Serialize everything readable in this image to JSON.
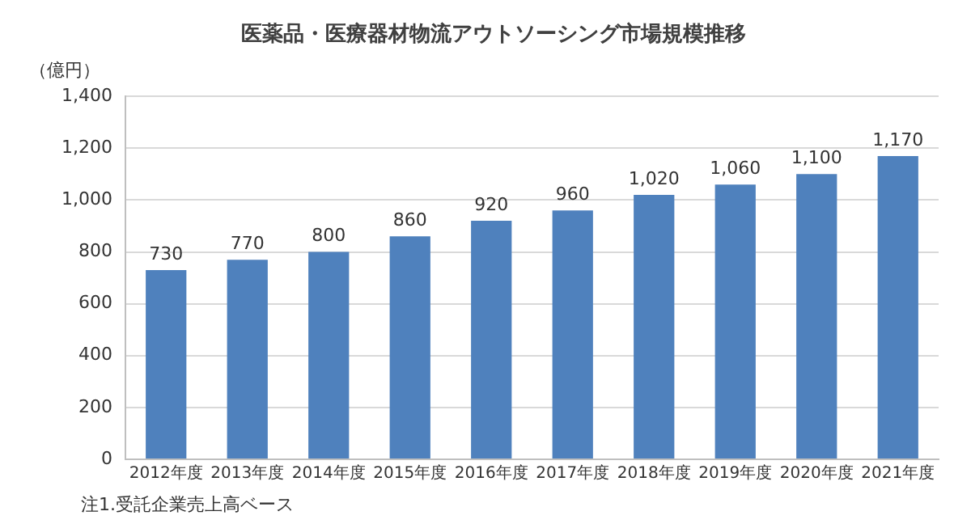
{
  "chart_data": {
    "type": "bar",
    "title": "医薬品・医療器材物流アウトソーシング市場規模推移",
    "ylabel": "（億円）",
    "categories": [
      "2012年度",
      "2013年度",
      "2014年度",
      "2015年度",
      "2016年度",
      "2017年度",
      "2018年度",
      "2019年度",
      "2020年度",
      "2021年度"
    ],
    "values": [
      730,
      770,
      800,
      860,
      920,
      960,
      1020,
      1060,
      1100,
      1170
    ],
    "value_labels": [
      "730",
      "770",
      "800",
      "860",
      "920",
      "960",
      "1,020",
      "1,060",
      "1,100",
      "1,170"
    ],
    "color": "#4f81bd",
    "ylim": [
      0,
      1400
    ],
    "yticks": [
      0,
      200,
      400,
      600,
      800,
      {
        "value": 1000,
        "label": "1,000"
      },
      {
        "value": 1200,
        "label": "1,200"
      },
      {
        "value": 1400,
        "label": "1,400"
      }
    ],
    "grid": "y",
    "annotations": [
      "注1.受託企業売上高ベース"
    ]
  }
}
